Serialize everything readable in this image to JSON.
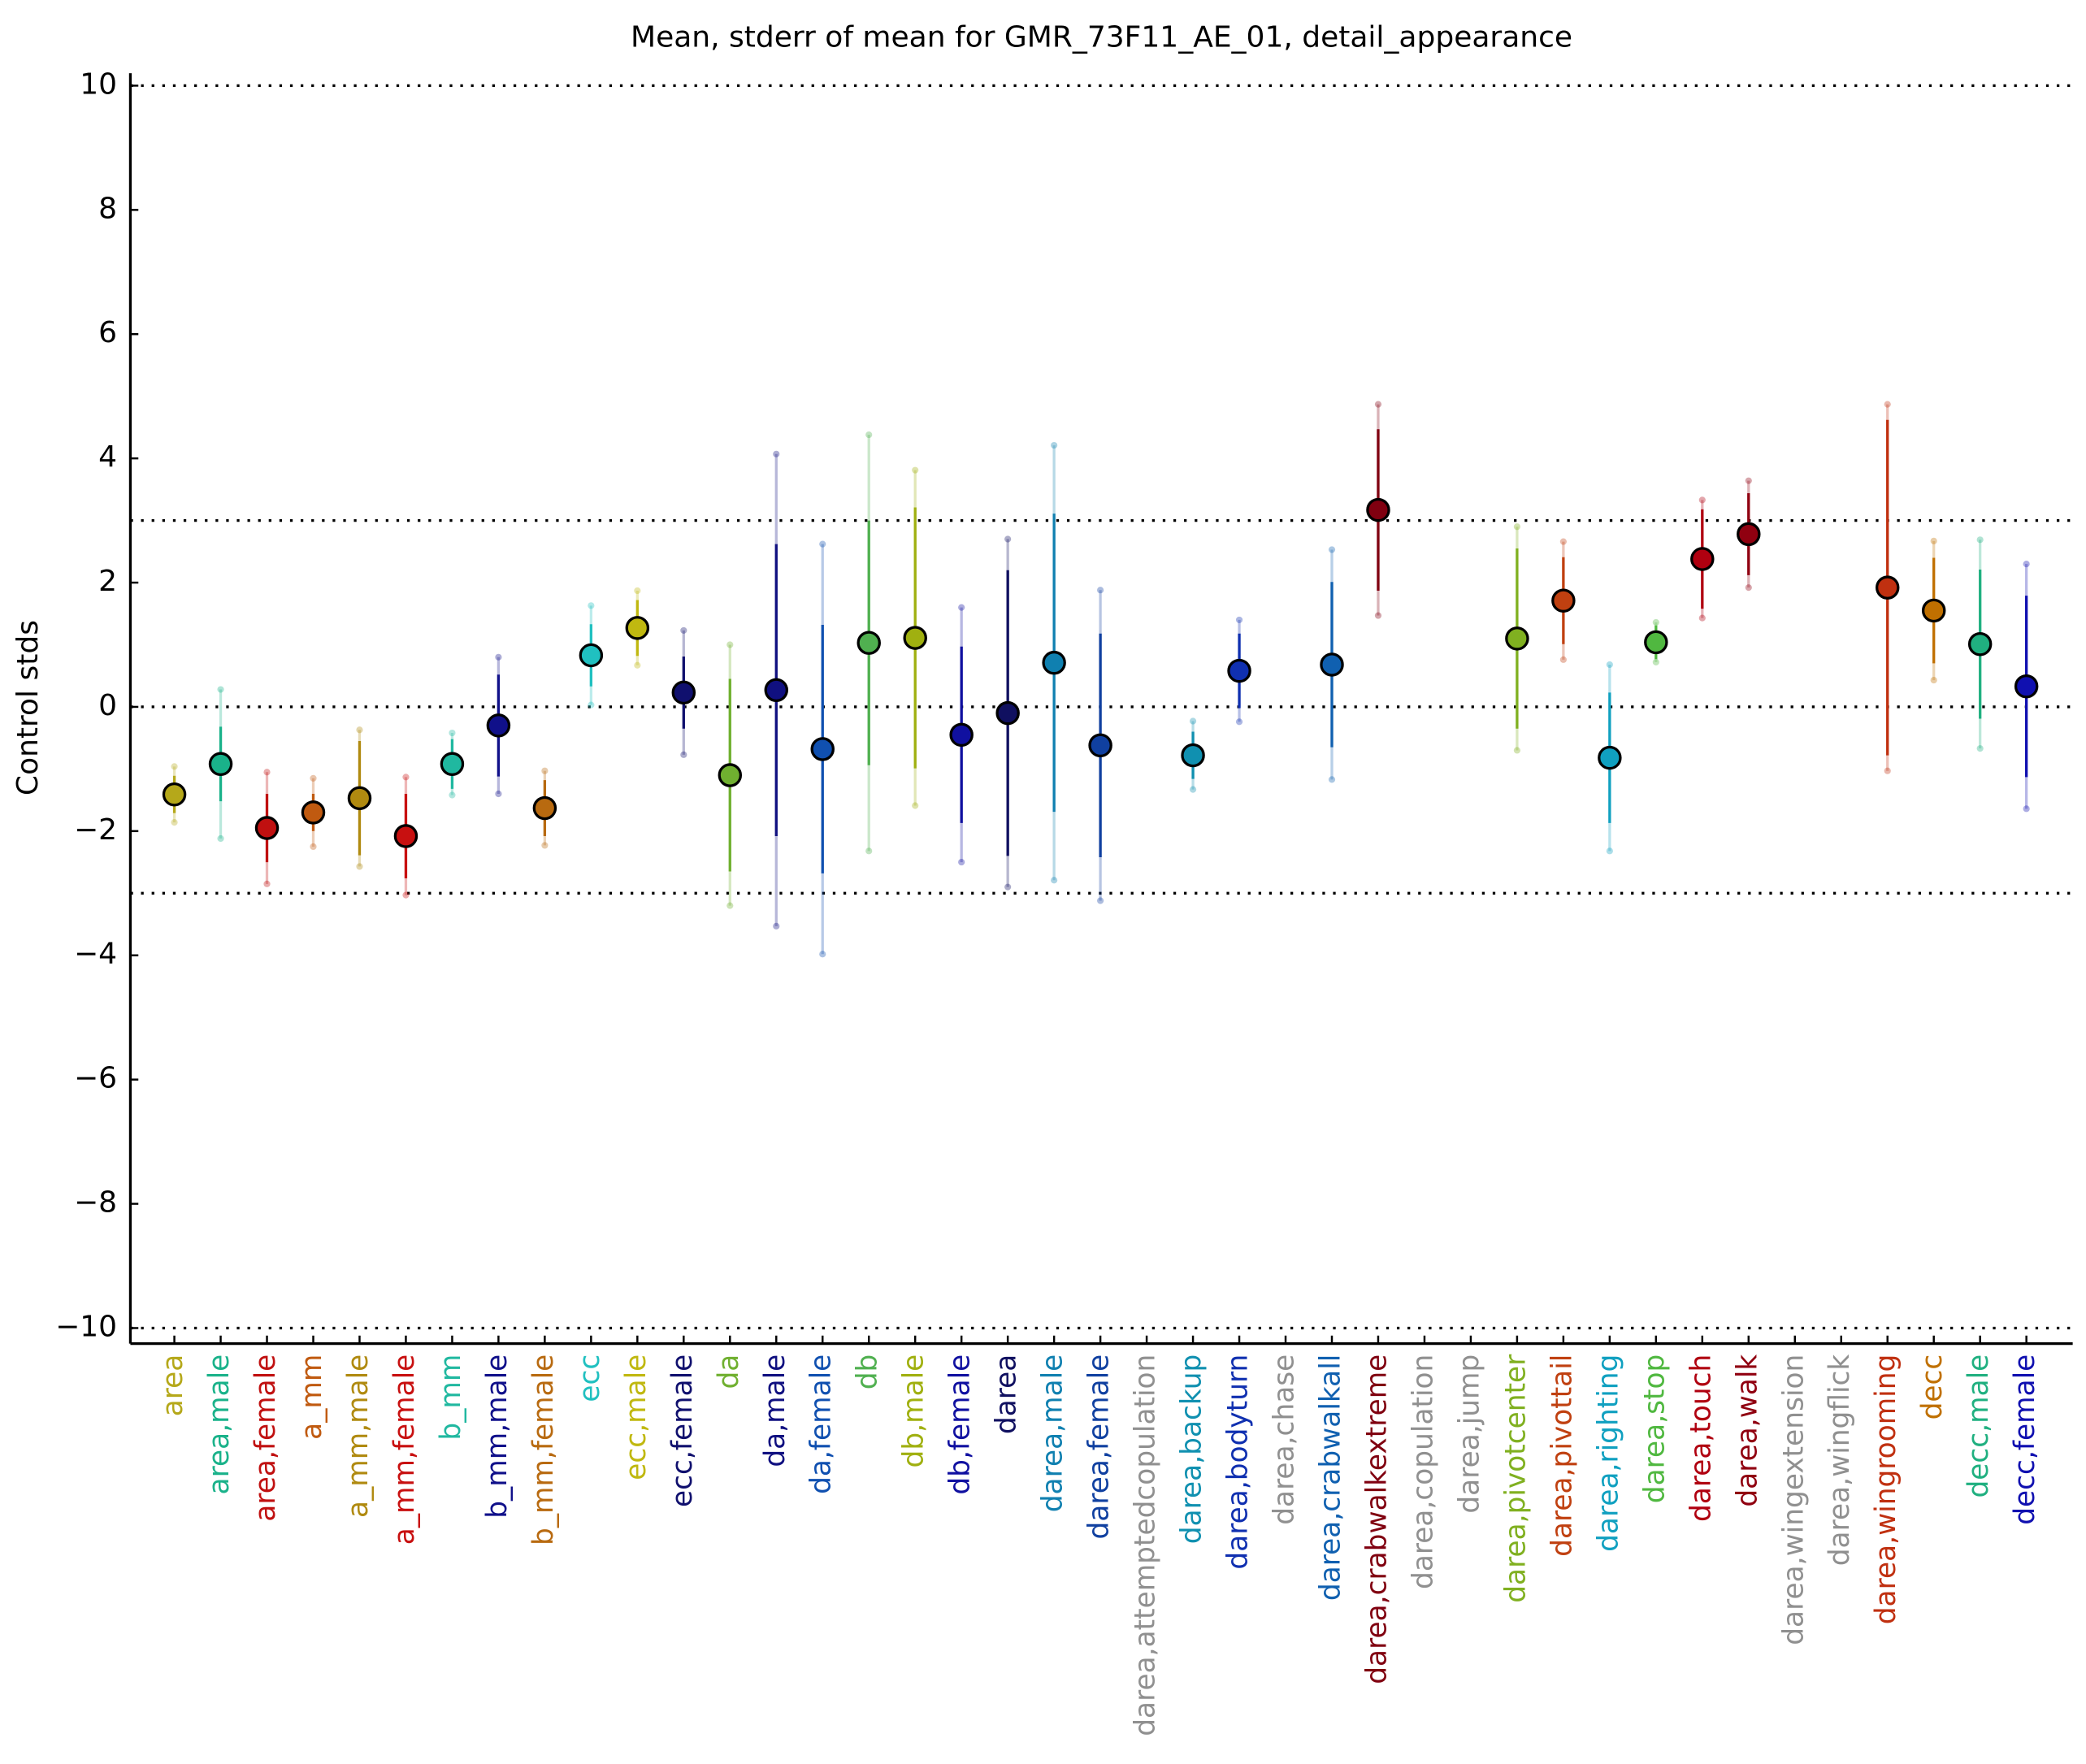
{
  "chart_data": {
    "type": "errorbar",
    "title": "Mean, stderr of mean for GMR_73F11_AE_01, detail_appearance",
    "y_label": "Control stds",
    "categories": [
      "area",
      "area,male",
      "area,female",
      "a_mm",
      "a_mm,male",
      "a_mm,female",
      "b_mm",
      "b_mm,male",
      "b_mm,female",
      "ecc",
      "ecc,male",
      "ecc,female",
      "da",
      "da,male",
      "da,female",
      "db",
      "db,male",
      "db,female",
      "darea",
      "darea,male",
      "darea,female",
      "darea,attemptedcopulation",
      "darea,backup",
      "darea,bodyturn",
      "darea,chase",
      "darea,crabwalkall",
      "darea,crabwalkextreme",
      "darea,copulation",
      "darea,jump",
      "darea,pivotcenter",
      "darea,pivottail",
      "darea,righting",
      "darea,stop",
      "darea,touch",
      "darea,walk",
      "darea,wingextension",
      "darea,wingflick",
      "darea,wingrooming",
      "decc",
      "decc,male",
      "decc,female"
    ],
    "values": [
      -1.41,
      -0.92,
      -1.95,
      -1.7,
      -1.47,
      -2.08,
      -0.92,
      -0.3,
      -1.63,
      0.83,
      1.27,
      0.23,
      -1.1,
      0.27,
      -0.68,
      1.03,
      1.11,
      -0.45,
      -0.1,
      0.71,
      -0.62,
      null,
      -0.78,
      0.58,
      null,
      0.68,
      3.17,
      null,
      null,
      1.1,
      1.71,
      -0.82,
      1.04,
      2.38,
      2.78,
      null,
      null,
      1.92,
      1.55,
      1.01,
      0.33
    ],
    "errors": [
      0.3,
      0.6,
      0.55,
      0.3,
      0.92,
      0.68,
      0.4,
      0.82,
      0.45,
      0.5,
      0.45,
      0.58,
      1.55,
      2.35,
      2.0,
      1.97,
      2.1,
      1.42,
      2.3,
      2.4,
      1.8,
      null,
      0.38,
      0.6,
      null,
      1.33,
      1.3,
      null,
      null,
      1.45,
      0.7,
      1.05,
      0.27,
      0.8,
      0.66,
      null,
      null,
      2.7,
      0.85,
      1.2,
      1.46
    ],
    "spread": [
      0.45,
      1.2,
      0.9,
      0.55,
      1.1,
      0.95,
      0.5,
      1.1,
      0.6,
      0.8,
      0.6,
      1.0,
      2.1,
      3.8,
      3.3,
      3.35,
      2.7,
      2.05,
      2.8,
      3.5,
      2.5,
      null,
      0.55,
      0.82,
      null,
      1.85,
      1.7,
      null,
      null,
      1.8,
      0.95,
      1.5,
      0.32,
      0.95,
      0.86,
      null,
      null,
      2.95,
      1.12,
      1.68,
      1.97
    ],
    "colors": [
      "#b5a81a",
      "#1ab28a",
      "#c01010",
      "#c05a10",
      "#b08a10",
      "#c81010",
      "#20b8a0",
      "#10108a",
      "#b86a10",
      "#20c0c0",
      "#c0b810",
      "#10106e",
      "#70b030",
      "#101080",
      "#1050b0",
      "#50b050",
      "#a0b010",
      "#1010a0",
      "#101060",
      "#1080b0",
      "#1040a0",
      "#909090",
      "#1090b0",
      "#1030b0",
      "#909090",
      "#1060b0",
      "#800010",
      "#909090",
      "#909090",
      "#80b020",
      "#c04010",
      "#10a0c0",
      "#50b840",
      "#b00010",
      "#900010",
      "#909090",
      "#909090",
      "#c03010",
      "#c07000",
      "#20b080",
      "#1010b0"
    ],
    "ylim": [
      -10.25,
      10.2
    ],
    "yticks": [
      {
        "value": -10,
        "label": "−10"
      },
      {
        "value": -8,
        "label": "−8"
      },
      {
        "value": -6,
        "label": "−6"
      },
      {
        "value": -4,
        "label": "−4"
      },
      {
        "value": -2,
        "label": "−2"
      },
      0,
      2,
      4,
      6,
      8,
      10
    ],
    "hlines": [
      10,
      3,
      0,
      -3,
      -10
    ]
  }
}
